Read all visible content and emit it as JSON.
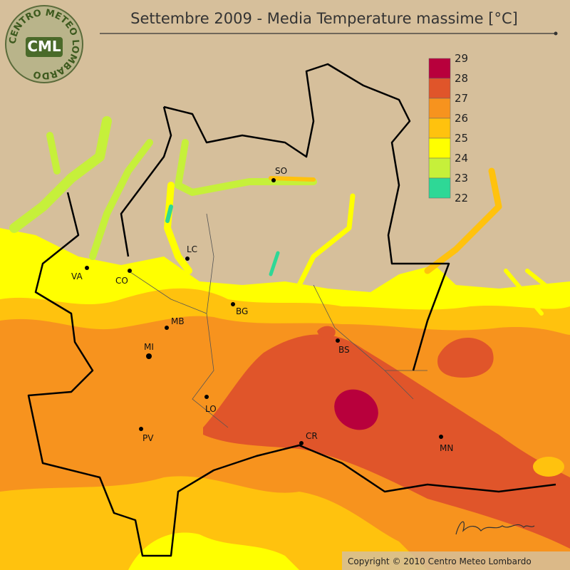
{
  "header": {
    "title": "Settembre 2009 - Media Temperature massime [°C]"
  },
  "logo": {
    "ring": "CENTRO METEO LOMBARDO",
    "initials": "CML"
  },
  "legend": {
    "labels": [
      "29",
      "28",
      "27",
      "26",
      "25",
      "24",
      "23",
      "22"
    ],
    "colors": [
      "#b8003c",
      "#e0552a",
      "#f7931e",
      "#ffc20e",
      "#ffff00",
      "#c6f03a",
      "#2ed896"
    ]
  },
  "cities": [
    "SO",
    "LC",
    "VA",
    "CO",
    "BG",
    "MB",
    "MI",
    "BS",
    "LO",
    "PV",
    "CR",
    "MN"
  ],
  "footer": {
    "copyright": "Copyright © 2010 Centro Meteo Lombardo"
  }
}
